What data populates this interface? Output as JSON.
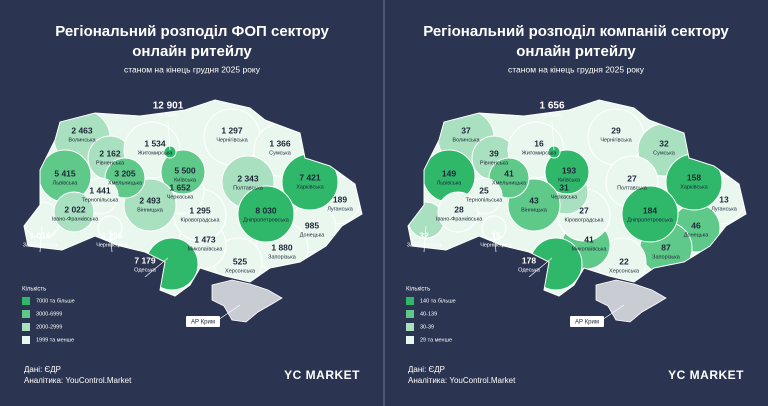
{
  "panels": [
    {
      "title_lines": [
        "Регіональний розподіл ФОП сектору",
        "онлайн ритейлу"
      ],
      "subtitle": "станом на кінець грудня 2025 року",
      "regions": [
        {
          "name": "Волинська",
          "value": "2 463",
          "color": "#a9e0bf"
        },
        {
          "name": "Рівненська",
          "value": "2 162",
          "color": "#a9e0bf"
        },
        {
          "name": "Житомирська",
          "value": "1 534",
          "color": "#eaf7ef"
        },
        {
          "name": "Чернігівська",
          "value": "1 297",
          "color": "#eaf7ef"
        },
        {
          "name": "Сумська",
          "value": "1 366",
          "color": "#eaf7ef"
        },
        {
          "name": "Луганська",
          "value": "189",
          "color": "#eaf7ef"
        },
        {
          "name": "Донецька",
          "value": "985",
          "color": "#eaf7ef"
        },
        {
          "name": "Запорізька",
          "value": "1 880",
          "color": "#eaf7ef"
        },
        {
          "name": "Херсонська",
          "value": "525",
          "color": "#eaf7ef"
        },
        {
          "name": "Миколаївська",
          "value": "1 473",
          "color": "#eaf7ef"
        },
        {
          "name": "Одеська",
          "value": "7 179",
          "color": "#2fb86a"
        },
        {
          "name": "Кіровоградська",
          "value": "1 295",
          "color": "#eaf7ef"
        },
        {
          "name": "Черкаська",
          "value": "1 652",
          "color": "#eaf7ef"
        },
        {
          "name": "Полтавська",
          "value": "2 343",
          "color": "#a9e0bf"
        },
        {
          "name": "Харківська",
          "value": "7 421",
          "color": "#2fb86a"
        },
        {
          "name": "Дніпропетровська",
          "value": "8 030",
          "color": "#2fb86a"
        },
        {
          "name": "Київська",
          "value": "5 500",
          "color": "#5fc98a"
        },
        {
          "name": "Вінницька",
          "value": "2 493",
          "color": "#a9e0bf"
        },
        {
          "name": "Хмельницька",
          "value": "3 205",
          "color": "#5fc98a"
        },
        {
          "name": "Тернопільська",
          "value": "1 441",
          "color": "#eaf7ef"
        },
        {
          "name": "Львівська",
          "value": "5 415",
          "color": "#5fc98a"
        },
        {
          "name": "Закарпатська",
          "value": "1 016",
          "color": "#eaf7ef"
        },
        {
          "name": "Івано-Франківська",
          "value": "2 022",
          "color": "#a9e0bf"
        },
        {
          "name": "Чернівецька",
          "value": "1 395",
          "color": "#eaf7ef"
        },
        {
          "name": "м. Київ",
          "value": "12 901",
          "color": "#2fb86a"
        }
      ],
      "crimea": "АР Крим",
      "legend": {
        "title": "Кількість",
        "items": [
          {
            "label": "7000 та більше",
            "color": "#2fb86a"
          },
          {
            "label": "3000-6999",
            "color": "#5fc98a"
          },
          {
            "label": "2000-2999",
            "color": "#a9e0bf"
          },
          {
            "label": "1999 та менше",
            "color": "#eaf7ef"
          }
        ]
      },
      "footer": {
        "source": "Дані: ЄДР",
        "analytics": "Аналітика: YouControl.Market",
        "logo": "YC MARKET"
      }
    },
    {
      "title_lines": [
        "Регіональний розподіл компаній сектору",
        "онлайн ритейлу"
      ],
      "subtitle": "станом на кінець грудня 2025 року",
      "regions": [
        {
          "name": "Волинська",
          "value": "37",
          "color": "#a9e0bf"
        },
        {
          "name": "Рівненська",
          "value": "39",
          "color": "#a9e0bf"
        },
        {
          "name": "Житомирська",
          "value": "16",
          "color": "#eaf7ef"
        },
        {
          "name": "Чернігівська",
          "value": "29",
          "color": "#eaf7ef"
        },
        {
          "name": "Сумська",
          "value": "32",
          "color": "#a9e0bf"
        },
        {
          "name": "Луганська",
          "value": "13",
          "color": "#eaf7ef"
        },
        {
          "name": "Донецька",
          "value": "46",
          "color": "#5fc98a"
        },
        {
          "name": "Запорізька",
          "value": "87",
          "color": "#5fc98a"
        },
        {
          "name": "Херсонська",
          "value": "22",
          "color": "#eaf7ef"
        },
        {
          "name": "Миколаївська",
          "value": "41",
          "color": "#5fc98a"
        },
        {
          "name": "Одеська",
          "value": "178",
          "color": "#2fb86a"
        },
        {
          "name": "Кіровоградська",
          "value": "27",
          "color": "#eaf7ef"
        },
        {
          "name": "Черкаська",
          "value": "31",
          "color": "#a9e0bf"
        },
        {
          "name": "Полтавська",
          "value": "27",
          "color": "#eaf7ef"
        },
        {
          "name": "Харківська",
          "value": "158",
          "color": "#2fb86a"
        },
        {
          "name": "Дніпропетровська",
          "value": "184",
          "color": "#2fb86a"
        },
        {
          "name": "Київська",
          "value": "193",
          "color": "#2fb86a"
        },
        {
          "name": "Вінницька",
          "value": "43",
          "color": "#5fc98a"
        },
        {
          "name": "Хмельницька",
          "value": "41",
          "color": "#5fc98a"
        },
        {
          "name": "Тернопільська",
          "value": "25",
          "color": "#eaf7ef"
        },
        {
          "name": "Львівська",
          "value": "149",
          "color": "#2fb86a"
        },
        {
          "name": "Закарпатська",
          "value": "32",
          "color": "#a9e0bf"
        },
        {
          "name": "Івано-Франківська",
          "value": "28",
          "color": "#eaf7ef"
        },
        {
          "name": "Чернівецька",
          "value": "15",
          "color": "#eaf7ef"
        },
        {
          "name": "м. Київ",
          "value": "1 656",
          "color": "#2fb86a"
        }
      ],
      "crimea": "АР Крим",
      "legend": {
        "title": "Кількість",
        "items": [
          {
            "label": "140 та більше",
            "color": "#2fb86a"
          },
          {
            "label": "40-139",
            "color": "#5fc98a"
          },
          {
            "label": "30-39",
            "color": "#a9e0bf"
          },
          {
            "label": "29 та менше",
            "color": "#eaf7ef"
          }
        ]
      },
      "footer": {
        "source": "Дані: ЄДР",
        "analytics": "Аналітика: YouControl.Market",
        "logo": "YC MARKET"
      }
    }
  ]
}
